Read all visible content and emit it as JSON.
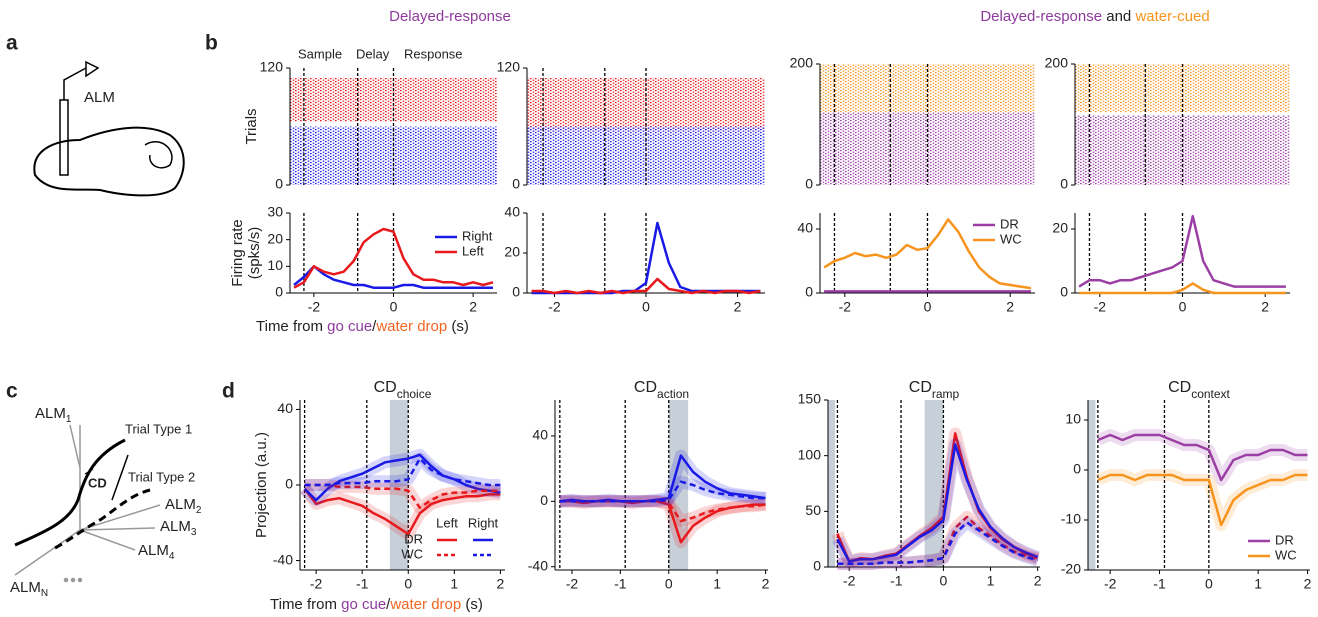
{
  "panel_labels": [
    "a",
    "b",
    "c",
    "d"
  ],
  "headers": {
    "left": "Delayed-response",
    "right": [
      "Delayed-response",
      "and",
      "water-cued"
    ]
  },
  "diagram_a": {
    "label": "ALM"
  },
  "diagram_c": {
    "axes": [
      {
        "main": "ALM",
        "sub": "1"
      },
      {
        "main": "ALM",
        "sub": "2"
      },
      {
        "main": "ALM",
        "sub": "3"
      },
      {
        "main": "ALM",
        "sub": "4"
      },
      {
        "main": "ALM",
        "sub": "N"
      }
    ],
    "trial_types": [
      "Trial Type 1",
      "Trial Type 2"
    ],
    "vector": "CD"
  },
  "epochs": [
    "Sample",
    "Delay",
    "Response"
  ],
  "x_label": [
    "Time from",
    "go cue",
    "/",
    "water drop",
    "(s)"
  ],
  "chart_data": [
    {
      "type": "raster",
      "ylabel": "Trials",
      "xlim": [
        -2.6,
        2.6
      ],
      "ylim": [
        0,
        120
      ],
      "yticks": [
        0,
        120
      ],
      "event_lines": [
        -2.25,
        -0.9,
        0
      ],
      "blocks": [
        {
          "color": "#e8191d",
          "trials": [
            65,
            110
          ]
        },
        {
          "color": "#1a1ae6",
          "trials": [
            0,
            60
          ]
        }
      ]
    },
    {
      "type": "raster",
      "xlim": [
        -2.6,
        2.6
      ],
      "ylim": [
        0,
        120
      ],
      "yticks": [
        0,
        120
      ],
      "event_lines": [
        -2.25,
        -0.9,
        0
      ],
      "blocks": [
        {
          "color": "#e8191d",
          "trials": [
            55,
            110
          ]
        },
        {
          "color": "#1a1ae6",
          "trials": [
            0,
            60
          ]
        }
      ]
    },
    {
      "type": "raster",
      "xlim": [
        -2.6,
        2.6
      ],
      "ylim": [
        0,
        200
      ],
      "yticks": [
        0,
        200
      ],
      "event_lines": [
        -2.25,
        -0.9,
        0
      ],
      "blocks": [
        {
          "color": "#f7941d",
          "trials": [
            120,
            200
          ]
        },
        {
          "color": "#9b3fa5",
          "trials": [
            0,
            120
          ]
        }
      ]
    },
    {
      "type": "raster",
      "xlim": [
        -2.6,
        2.6
      ],
      "ylim": [
        0,
        200
      ],
      "yticks": [
        0,
        200
      ],
      "event_lines": [
        -2.25,
        -0.9,
        0
      ],
      "blocks": [
        {
          "color": "#f7941d",
          "trials": [
            120,
            200
          ]
        },
        {
          "color": "#9b3fa5",
          "trials": [
            0,
            115
          ]
        }
      ]
    },
    {
      "type": "line",
      "ylabel": [
        "Firing rate",
        "(spks/s)"
      ],
      "xlim": [
        -2.6,
        2.6
      ],
      "ylim": [
        0,
        30
      ],
      "xticks": [
        -2,
        0,
        2
      ],
      "yticks": [
        0,
        10,
        20,
        30
      ],
      "event_lines": [
        -2.25,
        -0.9,
        0
      ],
      "legend": "center right",
      "x": [
        -2.5,
        -2.25,
        -2,
        -1.75,
        -1.5,
        -1.25,
        -1,
        -0.75,
        -0.5,
        -0.25,
        0,
        0.25,
        0.5,
        0.75,
        1,
        1.25,
        1.5,
        1.75,
        2,
        2.25,
        2.5
      ],
      "series": [
        {
          "name": "Right",
          "color": "#1a1ae6",
          "values": [
            3,
            6,
            10,
            7,
            5,
            4,
            3,
            3,
            2,
            2,
            2,
            3,
            3,
            2,
            2,
            2,
            2,
            2,
            2,
            2,
            2
          ]
        },
        {
          "name": "Left",
          "color": "#e8191d",
          "values": [
            2,
            4,
            10,
            8,
            7,
            8,
            12,
            19,
            22,
            24,
            23,
            13,
            7,
            5,
            5,
            4,
            4,
            3,
            4,
            3,
            4
          ]
        }
      ]
    },
    {
      "type": "line",
      "xlim": [
        -2.6,
        2.6
      ],
      "ylim": [
        0,
        40
      ],
      "xticks": [
        -2,
        0,
        2
      ],
      "yticks": [
        0,
        20,
        40
      ],
      "event_lines": [
        -2.25,
        -0.9,
        0
      ],
      "x": [
        -2.5,
        -2.25,
        -2,
        -1.75,
        -1.5,
        -1.25,
        -1,
        -0.75,
        -0.5,
        -0.25,
        0,
        0.25,
        0.5,
        0.75,
        1,
        1.25,
        1.5,
        1.75,
        2,
        2.25,
        2.5
      ],
      "series": [
        {
          "color": "#1a1ae6",
          "values": [
            0,
            0,
            0,
            0,
            0,
            0,
            0,
            0,
            1,
            1,
            5,
            35,
            15,
            3,
            1,
            1,
            1,
            1,
            1,
            1,
            1
          ]
        },
        {
          "color": "#e8191d",
          "values": [
            1,
            1,
            0,
            1,
            0,
            1,
            0,
            1,
            0,
            1,
            1,
            7,
            2,
            1,
            0,
            1,
            0,
            1,
            1,
            0,
            1
          ]
        }
      ]
    },
    {
      "type": "line",
      "xlim": [
        -2.6,
        2.6
      ],
      "ylim": [
        0,
        50
      ],
      "xticks": [
        -2,
        0,
        2
      ],
      "yticks": [
        0,
        40
      ],
      "event_lines": [
        -2.25,
        -0.9,
        0
      ],
      "legend": "upper right",
      "x": [
        -2.5,
        -2.25,
        -2,
        -1.75,
        -1.5,
        -1.25,
        -1,
        -0.75,
        -0.5,
        -0.25,
        0,
        0.25,
        0.5,
        0.75,
        1,
        1.25,
        1.5,
        1.75,
        2,
        2.25,
        2.5
      ],
      "series": [
        {
          "name": "DR",
          "color": "#9b3fa5",
          "values": [
            1,
            1,
            1,
            1,
            1,
            1,
            1,
            1,
            1,
            1,
            1,
            1,
            1,
            1,
            1,
            1,
            1,
            1,
            1,
            1,
            1
          ]
        },
        {
          "name": "WC",
          "color": "#f7941d",
          "values": [
            16,
            20,
            22,
            25,
            23,
            24,
            22,
            24,
            30,
            27,
            28,
            36,
            46,
            38,
            26,
            16,
            10,
            6,
            5,
            4,
            3
          ]
        }
      ]
    },
    {
      "type": "line",
      "xlim": [
        -2.6,
        2.6
      ],
      "ylim": [
        0,
        25
      ],
      "xticks": [
        -2,
        0,
        2
      ],
      "yticks": [
        0,
        20
      ],
      "event_lines": [
        -2.25,
        -0.9,
        0
      ],
      "x": [
        -2.5,
        -2.25,
        -2,
        -1.75,
        -1.5,
        -1.25,
        -1,
        -0.75,
        -0.5,
        -0.25,
        0,
        0.25,
        0.5,
        0.75,
        1,
        1.25,
        1.5,
        1.75,
        2,
        2.25,
        2.5
      ],
      "series": [
        {
          "color": "#9b3fa5",
          "values": [
            2,
            4,
            4,
            3,
            4,
            4,
            5,
            6,
            7,
            8,
            10,
            24,
            10,
            4,
            3,
            2,
            2,
            2,
            2,
            2,
            2
          ]
        },
        {
          "color": "#f7941d",
          "values": [
            0,
            0,
            0,
            0,
            0,
            0,
            0,
            0,
            0,
            0,
            1,
            3,
            1,
            0,
            0,
            0,
            0,
            0,
            0,
            0,
            0
          ]
        }
      ]
    },
    {
      "type": "line",
      "title": {
        "main": "CD",
        "sub": "choice"
      },
      "ylabel": "Projection (a.u.)",
      "xlim": [
        -2.35,
        2.1
      ],
      "ylim": [
        -45,
        45
      ],
      "xticks": [
        -2,
        -1,
        0,
        1,
        2
      ],
      "yticks": [
        -40,
        0,
        40
      ],
      "event_lines": [
        -2.25,
        -0.9,
        0
      ],
      "shade": [
        [
          -0.4,
          0
        ]
      ],
      "legend": {
        "columns": [
          "Left",
          "Right"
        ],
        "rows": [
          "DR",
          "WC"
        ]
      },
      "x": [
        -2.25,
        -2,
        -1.75,
        -1.5,
        -1.25,
        -1,
        -0.75,
        -0.5,
        -0.25,
        0,
        0.25,
        0.5,
        0.75,
        1,
        1.25,
        1.5,
        1.75,
        2
      ],
      "series": [
        {
          "color": "#e8191d",
          "values": [
            -2,
            -10,
            -8,
            -7,
            -9,
            -11,
            -15,
            -18,
            -22,
            -26,
            -15,
            -10,
            -8,
            -7,
            -6,
            -6,
            -5,
            -5
          ]
        },
        {
          "color": "#1a1ae6",
          "values": [
            -2,
            -8,
            -2,
            2,
            4,
            6,
            9,
            12,
            13,
            14,
            16,
            10,
            5,
            3,
            0,
            -2,
            -3,
            -4
          ]
        },
        {
          "color": "#e8191d",
          "dash": true,
          "values": [
            0,
            0,
            0,
            -1,
            -1,
            -1,
            -2,
            -2,
            -2,
            -3,
            -12,
            -8,
            -5,
            -4,
            -4,
            -3,
            -3,
            -3
          ]
        },
        {
          "color": "#1a1ae6",
          "dash": true,
          "values": [
            0,
            0,
            0,
            1,
            1,
            1,
            2,
            2,
            2,
            3,
            14,
            8,
            5,
            3,
            2,
            1,
            0,
            0
          ]
        }
      ]
    },
    {
      "type": "line",
      "title": {
        "main": "CD",
        "sub": "action"
      },
      "xlim": [
        -2.35,
        2.05
      ],
      "ylim": [
        -42,
        62
      ],
      "xticks": [
        -2,
        -1,
        0,
        1,
        2
      ],
      "yticks": [
        -40,
        0,
        40
      ],
      "event_lines": [
        -2.25,
        -0.9,
        0
      ],
      "shade": [
        [
          0,
          0.4
        ]
      ],
      "x": [
        -2.25,
        -2,
        -1.75,
        -1.5,
        -1.25,
        -1,
        -0.75,
        -0.5,
        -0.25,
        0,
        0.25,
        0.5,
        0.75,
        1,
        1.25,
        1.5,
        1.75,
        2
      ],
      "series": [
        {
          "color": "#e8191d",
          "values": [
            0,
            0,
            -1,
            0,
            0,
            0,
            -1,
            0,
            0,
            -2,
            -25,
            -15,
            -10,
            -6,
            -4,
            -3,
            -2,
            -2
          ]
        },
        {
          "color": "#1a1ae6",
          "values": [
            0,
            1,
            0,
            0,
            1,
            0,
            0,
            0,
            1,
            2,
            28,
            18,
            12,
            8,
            5,
            4,
            3,
            2
          ]
        },
        {
          "color": "#e8191d",
          "dash": true,
          "values": [
            0,
            0,
            0,
            0,
            0,
            0,
            0,
            0,
            0,
            -1,
            -12,
            -10,
            -7,
            -5,
            -4,
            -3,
            -3,
            -2
          ]
        },
        {
          "color": "#1a1ae6",
          "dash": true,
          "values": [
            0,
            0,
            0,
            0,
            0,
            0,
            0,
            0,
            0,
            1,
            12,
            10,
            7,
            5,
            4,
            3,
            2,
            2
          ]
        }
      ]
    },
    {
      "type": "line",
      "title": {
        "main": "CD",
        "sub": "ramp"
      },
      "xlim": [
        -2.45,
        2.05
      ],
      "ylim": [
        0,
        150
      ],
      "xticks": [
        -2,
        -1,
        0,
        1,
        2
      ],
      "yticks": [
        0,
        50,
        100,
        150
      ],
      "event_lines": [
        -2.25,
        -0.9,
        0
      ],
      "shade": [
        [
          -2.45,
          -2.3
        ],
        [
          -0.4,
          0
        ]
      ],
      "x": [
        -2.25,
        -2,
        -1.75,
        -1.5,
        -1.25,
        -1,
        -0.75,
        -0.5,
        -0.25,
        0,
        0.25,
        0.5,
        0.75,
        1,
        1.25,
        1.5,
        1.75,
        2
      ],
      "series": [
        {
          "color": "#e8191d",
          "values": [
            30,
            5,
            8,
            7,
            10,
            12,
            20,
            28,
            35,
            45,
            120,
            80,
            50,
            35,
            25,
            18,
            12,
            8
          ]
        },
        {
          "color": "#1a1ae6",
          "values": [
            25,
            5,
            7,
            7,
            9,
            11,
            19,
            27,
            33,
            42,
            110,
            78,
            52,
            36,
            26,
            18,
            13,
            9
          ]
        },
        {
          "color": "#e8191d",
          "dash": true,
          "values": [
            3,
            3,
            3,
            3,
            4,
            4,
            4,
            5,
            6,
            8,
            35,
            45,
            35,
            28,
            20,
            14,
            10,
            7
          ]
        },
        {
          "color": "#1a1ae6",
          "dash": true,
          "values": [
            3,
            3,
            3,
            3,
            4,
            4,
            4,
            5,
            6,
            8,
            30,
            40,
            33,
            26,
            19,
            13,
            9,
            6
          ]
        }
      ]
    },
    {
      "type": "line",
      "title": {
        "main": "CD",
        "sub": "context"
      },
      "xlim": [
        -2.45,
        2.05
      ],
      "ylim": [
        -20,
        14
      ],
      "xticks": [
        -2,
        -1,
        0,
        1,
        2
      ],
      "yticks": [
        -20,
        -10,
        0,
        10
      ],
      "event_lines": [
        -2.25,
        -0.9,
        0
      ],
      "shade": [
        [
          -2.45,
          -2.3
        ]
      ],
      "legend": "lower right",
      "x": [
        -2.25,
        -2,
        -1.75,
        -1.5,
        -1.25,
        -1,
        -0.75,
        -0.5,
        -0.25,
        0,
        0.25,
        0.5,
        0.75,
        1,
        1.25,
        1.5,
        1.75,
        2
      ],
      "series": [
        {
          "name": "DR",
          "color": "#9b3fa5",
          "values": [
            6,
            7,
            6,
            7,
            7,
            7,
            6,
            5,
            5,
            4,
            -2,
            2,
            3,
            3,
            4,
            4,
            3,
            3
          ]
        },
        {
          "name": "WC",
          "color": "#f7941d",
          "values": [
            -2,
            -1,
            -1,
            -2,
            -1,
            -1,
            -1,
            -2,
            -2,
            -2,
            -11,
            -6,
            -4,
            -3,
            -2,
            -2,
            -1,
            -1
          ]
        }
      ]
    }
  ]
}
